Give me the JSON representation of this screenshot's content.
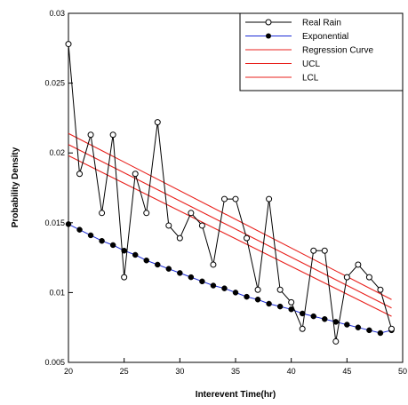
{
  "chart_data": {
    "type": "line",
    "xlabel": "Interevent Time(hr)",
    "ylabel": "Probability Density",
    "xlim": [
      20,
      50
    ],
    "ylim": [
      0.005,
      0.03
    ],
    "xticks": [
      "20",
      "25",
      "30",
      "35",
      "40",
      "45",
      "50"
    ],
    "yticks": [
      "0.005",
      "0.01",
      "0.015",
      "0.02",
      "0.025",
      "0.03"
    ],
    "legend_position": "top-right",
    "grid": false,
    "series": [
      {
        "name": "Real Rain",
        "color": "#000000",
        "marker": "open-circle",
        "x": [
          20,
          21,
          22,
          23,
          24,
          25,
          26,
          27,
          28,
          29,
          30,
          31,
          32,
          33,
          34,
          35,
          36,
          37,
          38,
          39,
          40,
          41,
          42,
          43,
          44,
          45,
          46,
          47,
          48,
          49
        ],
        "y": [
          0.0278,
          0.0185,
          0.0213,
          0.0157,
          0.0213,
          0.0111,
          0.0185,
          0.0157,
          0.0222,
          0.0148,
          0.0139,
          0.0157,
          0.0148,
          0.012,
          0.0167,
          0.0167,
          0.0139,
          0.0102,
          0.0167,
          0.0102,
          0.0093,
          0.0074,
          0.013,
          0.013,
          0.0065,
          0.0111,
          0.012,
          0.0111,
          0.0102,
          0.0074
        ]
      },
      {
        "name": "Exponential",
        "color": "#1a2ad6",
        "marker": "filled-circle",
        "x": [
          20,
          21,
          22,
          23,
          24,
          25,
          26,
          27,
          28,
          29,
          30,
          31,
          32,
          33,
          34,
          35,
          36,
          37,
          38,
          39,
          40,
          41,
          42,
          43,
          44,
          45,
          46,
          47,
          48,
          49
        ],
        "y": [
          0.0149,
          0.0145,
          0.0141,
          0.0137,
          0.0134,
          0.013,
          0.0127,
          0.0123,
          0.012,
          0.0117,
          0.0114,
          0.0111,
          0.0108,
          0.0105,
          0.0103,
          0.01,
          0.0097,
          0.0095,
          0.0092,
          0.009,
          0.0088,
          0.0085,
          0.0083,
          0.0081,
          0.0079,
          0.0077,
          0.0075,
          0.0073,
          0.0071,
          0.0073
        ]
      },
      {
        "name": "Regression Curve",
        "color": "#e8201c",
        "marker": "none",
        "x": [
          20,
          49
        ],
        "y": [
          0.0206,
          0.0089
        ]
      },
      {
        "name": "UCL",
        "color": "#e8201c",
        "marker": "none",
        "x": [
          20,
          49
        ],
        "y": [
          0.0214,
          0.0095
        ]
      },
      {
        "name": "LCL",
        "color": "#e8201c",
        "marker": "none",
        "x": [
          20,
          49
        ],
        "y": [
          0.0198,
          0.0083
        ]
      }
    ]
  }
}
